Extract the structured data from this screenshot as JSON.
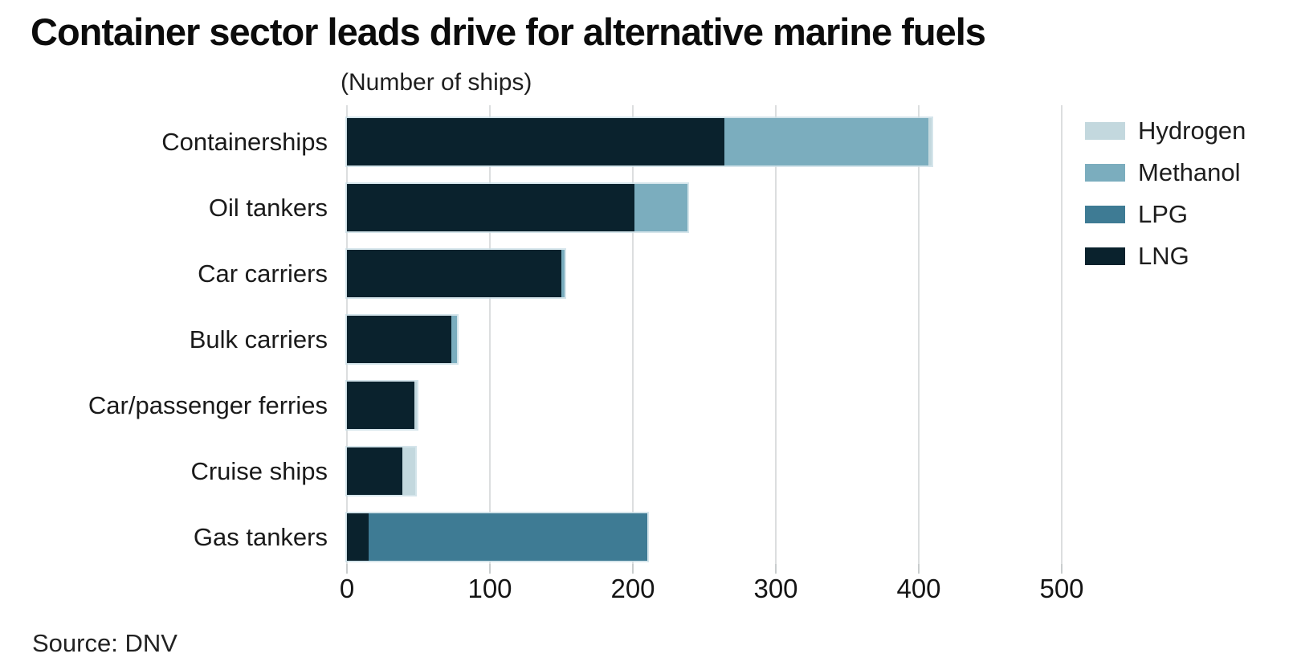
{
  "header": {
    "title": "Container sector leads drive for alternative marine fuels",
    "subtitle": "(Number of ships)"
  },
  "footer": {
    "source": "Source: DNV"
  },
  "colors": {
    "hydrogen": "#c3d8de",
    "methanol": "#7badbe",
    "lpg": "#3e7b94",
    "lng": "#0a222d",
    "gridline": "#dcdedf",
    "text": "#1a1a1a"
  },
  "chart_data": {
    "type": "bar",
    "orientation": "horizontal",
    "stacked": true,
    "title": "Container sector leads drive for alternative marine fuels",
    "subtitle": "(Number of ships)",
    "categories": [
      "Containerships",
      "Oil tankers",
      "Car carriers",
      "Bulk carriers",
      "Car/passenger ferries",
      "Cruise ships",
      "Gas tankers"
    ],
    "series": [
      {
        "name": "LNG",
        "color": "#0a222d",
        "values": [
          264,
          201,
          150,
          73,
          47,
          39,
          15
        ]
      },
      {
        "name": "LPG",
        "color": "#3e7b94",
        "values": [
          0,
          0,
          0,
          0,
          0,
          0,
          195
        ]
      },
      {
        "name": "Methanol",
        "color": "#7badbe",
        "values": [
          143,
          37,
          2,
          4,
          0,
          0,
          0
        ]
      },
      {
        "name": "Hydrogen",
        "color": "#c3d8de",
        "values": [
          2,
          0,
          0,
          0,
          2,
          9,
          0
        ]
      }
    ],
    "totals": [
      409,
      238,
      152,
      77,
      49,
      48,
      210
    ],
    "x_ticks": [
      0,
      100,
      200,
      300,
      400,
      500
    ],
    "xlim": [
      0,
      500
    ],
    "grid": "vertical",
    "legend": {
      "position": "top-right",
      "entries": [
        {
          "label": "Hydrogen",
          "color": "#c3d8de"
        },
        {
          "label": "Methanol",
          "color": "#7badbe"
        },
        {
          "label": "LPG",
          "color": "#3e7b94"
        },
        {
          "label": "LNG",
          "color": "#0a222d"
        }
      ]
    },
    "source": "Source: DNV"
  }
}
